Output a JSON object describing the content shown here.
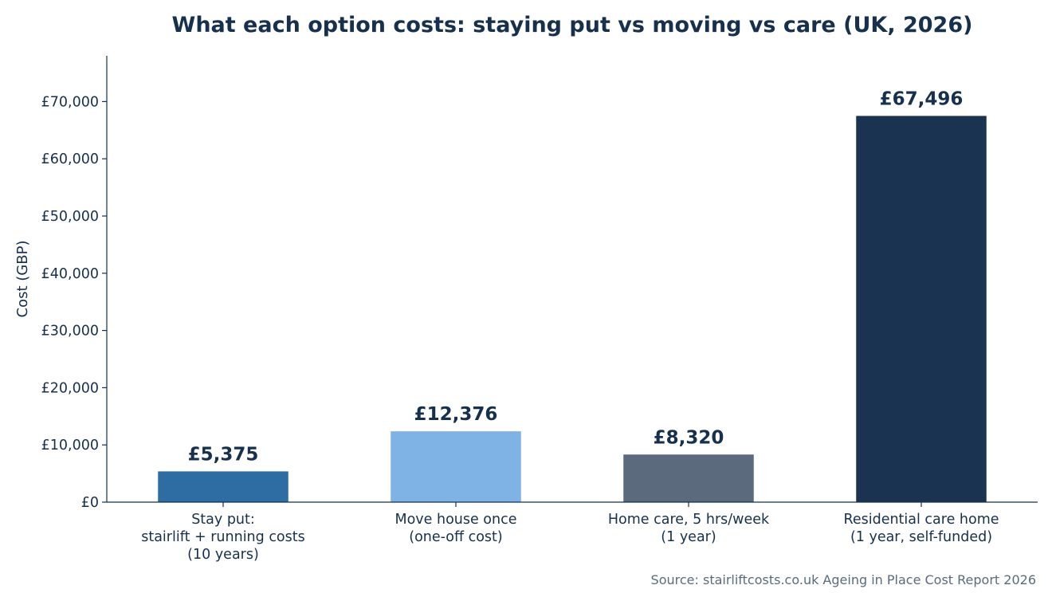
{
  "chart_data": {
    "type": "bar",
    "title": "What each option costs: staying put vs moving vs care (UK, 2026)",
    "ylabel": "Cost (GBP)",
    "xlabel": "",
    "ylim": [
      0,
      78000
    ],
    "yticks": [
      0,
      10000,
      20000,
      30000,
      40000,
      50000,
      60000,
      70000
    ],
    "ytick_labels": [
      "£0",
      "£10,000",
      "£20,000",
      "£30,000",
      "£40,000",
      "£50,000",
      "£60,000",
      "£70,000"
    ],
    "categories": [
      [
        "Stay put:",
        "stairlift + running costs",
        "(10 years)"
      ],
      [
        "Move house once",
        "(one-off cost)"
      ],
      [
        "Home care, 5 hrs/week",
        "(1 year)"
      ],
      [
        "Residential care home",
        "(1 year, self-funded)"
      ]
    ],
    "values": [
      5375,
      12376,
      8320,
      67496
    ],
    "data_labels": [
      "£5,375",
      "£12,376",
      "£8,320",
      "£67,496"
    ],
    "colors": [
      "#2e6ca4",
      "#7fb2e5",
      "#5b6b7d",
      "#1a3350"
    ],
    "grid": false,
    "legend": "none",
    "source": "Source: stairliftcosts.co.uk Ageing in Place Cost Report 2026"
  }
}
